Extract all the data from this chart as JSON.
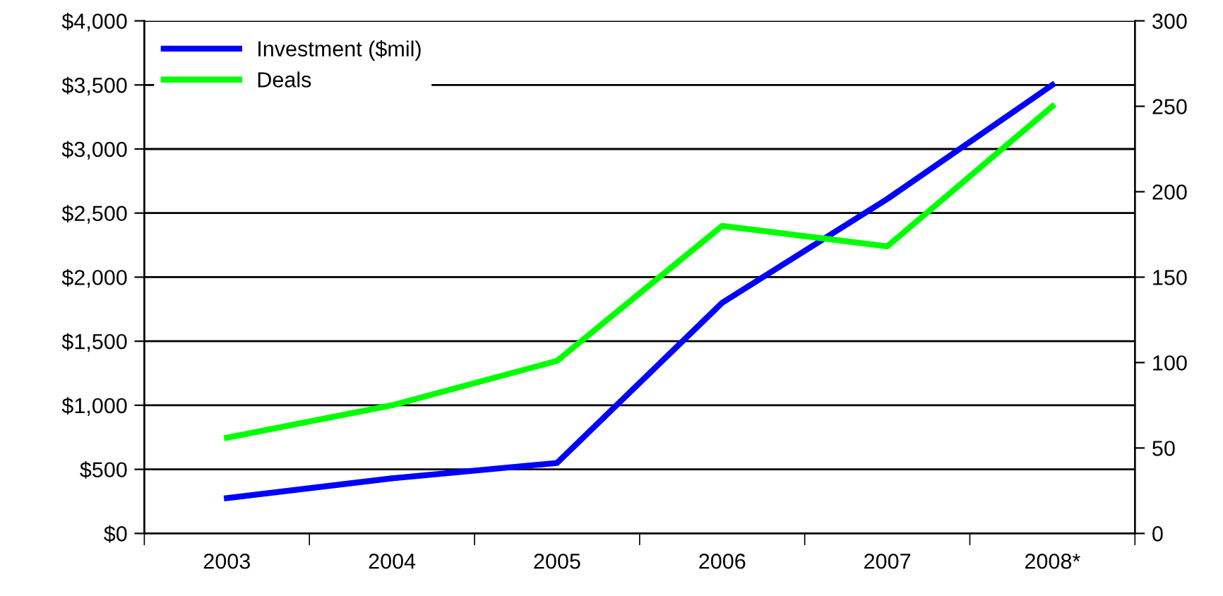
{
  "chart_data": {
    "type": "line",
    "categories": [
      "2003",
      "2004",
      "2005",
      "2006",
      "2007",
      "2008*"
    ],
    "series": [
      {
        "name": "Investment ($mil)",
        "color": "#0000ff",
        "values": [
          275,
          430,
          550,
          1800,
          2610,
          3500
        ]
      },
      {
        "name": "Deals",
        "color": "#00ff00",
        "values": [
          56,
          75,
          101,
          180,
          168,
          250
        ],
        "axis": "y2"
      }
    ],
    "ylim": [
      0,
      4000
    ],
    "yticks": [
      {
        "value": 0,
        "label": "$0"
      },
      {
        "value": 500,
        "label": "$500"
      },
      {
        "value": 1000,
        "label": "$1,000"
      },
      {
        "value": 1500,
        "label": "$1,500"
      },
      {
        "value": 2000,
        "label": "$2,000"
      },
      {
        "value": 2500,
        "label": "$2,500"
      },
      {
        "value": 3000,
        "label": "$3,000"
      },
      {
        "value": 3500,
        "label": "$3,500"
      },
      {
        "value": 4000,
        "label": "$4,000"
      }
    ],
    "y2lim": [
      0,
      300
    ],
    "y2ticks": [
      0,
      50,
      100,
      150,
      200,
      250,
      300
    ],
    "grid": "y",
    "legend": "top left",
    "marker": "none",
    "line_style": "solid"
  }
}
